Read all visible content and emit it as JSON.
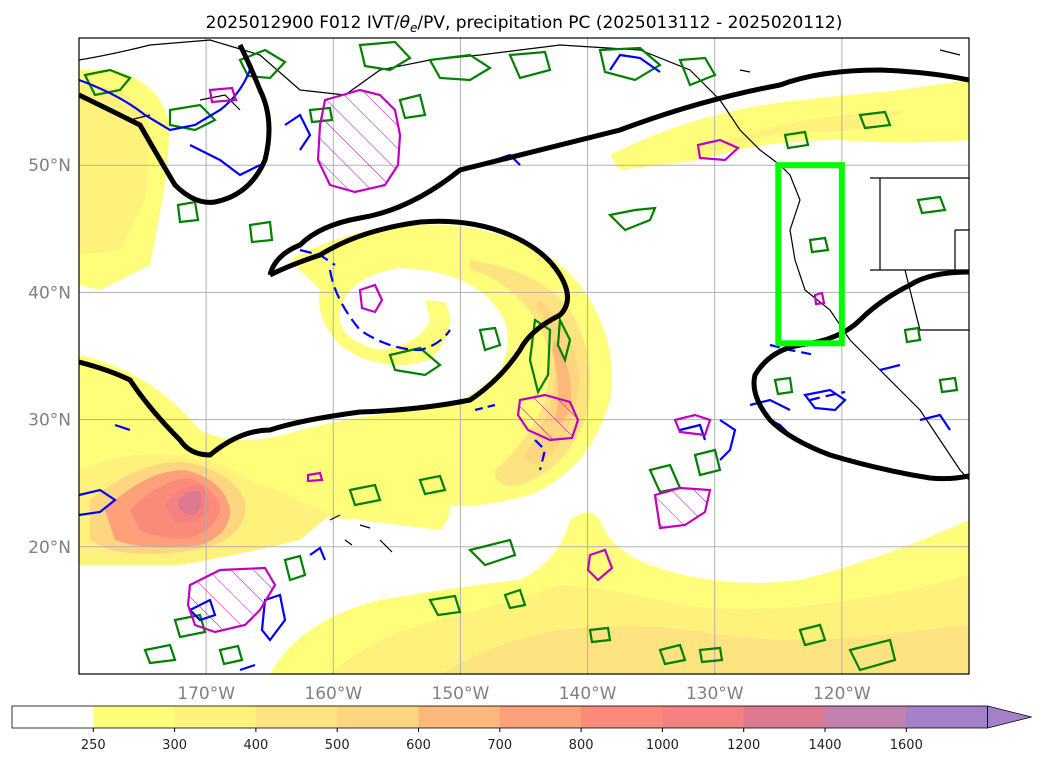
{
  "map": {
    "title_prefix": "2025012900 F012 IVT/",
    "title_theta": "θ",
    "title_sub": "e",
    "title_suffix": "/PV, precipitation PC (2025013112 - 2025020112)",
    "lon_range": [
      -180,
      -110
    ],
    "lat_range": [
      10,
      60
    ],
    "lat_ticks": [
      {
        "value": 50,
        "label": "50°N"
      },
      {
        "value": 40,
        "label": "40°N"
      },
      {
        "value": 30,
        "label": "30°N"
      },
      {
        "value": 20,
        "label": "20°N"
      }
    ],
    "lon_ticks": [
      {
        "value": -170,
        "label": "170°W"
      },
      {
        "value": -160,
        "label": "160°W"
      },
      {
        "value": -150,
        "label": "150°W"
      },
      {
        "value": -140,
        "label": "140°W"
      },
      {
        "value": -130,
        "label": "130°W"
      },
      {
        "value": -120,
        "label": "120°W"
      }
    ],
    "highlight_box": {
      "lon": [
        -125,
        -120
      ],
      "lat": [
        36,
        50
      ],
      "color": "#00ff00"
    }
  },
  "colorbar": {
    "levels": [
      250,
      300,
      400,
      500,
      600,
      700,
      800,
      1000,
      1200,
      1400,
      1600
    ],
    "labels": [
      "250",
      "300",
      "400",
      "500",
      "600",
      "700",
      "800",
      "1000",
      "1200",
      "1400",
      "1600"
    ],
    "colors": [
      "#ffffff",
      "#fefe7a",
      "#fef27c",
      "#fee480",
      "#fed680",
      "#feb87a",
      "#fea07a",
      "#fc8a7a",
      "#f48080",
      "#dc7890",
      "#c280b0",
      "#a480c8"
    ],
    "extend": "max"
  },
  "colors": {
    "ivt_contour": "#000000",
    "theta_e_contour": "#008000",
    "pv_contour": "#0000ff",
    "precip_contour": "#c000c0",
    "coastline": "#000000",
    "grid": "#b0b0b0"
  }
}
